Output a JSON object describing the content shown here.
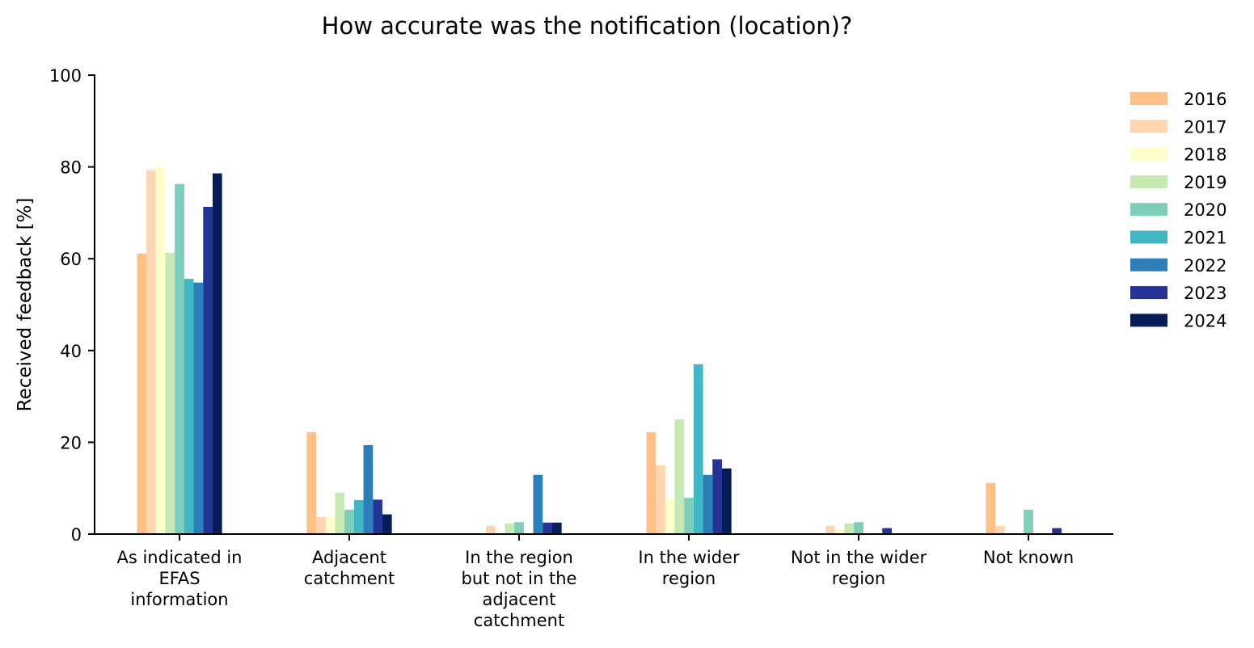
{
  "chart_data": {
    "type": "bar",
    "title": "How accurate was the notification (location)?",
    "xlabel": "",
    "ylabel": "Received feedback [%]",
    "ylim": [
      0,
      100
    ],
    "yticks": [
      "0",
      "20",
      "40",
      "60",
      "80",
      "100"
    ],
    "grid": false,
    "legend_position": "right",
    "categories": [
      "As indicated in EFAS information",
      "Adjacent catchment",
      "In the region but not in the adjacent catchment",
      "In the wider region",
      "Not in the wider region",
      "Not known"
    ],
    "category_label_lines": [
      [
        "As indicated in",
        "EFAS",
        "information"
      ],
      [
        "Adjacent",
        "catchment"
      ],
      [
        "In the region",
        "but not in the",
        "adjacent",
        "catchment"
      ],
      [
        "In the wider",
        "region"
      ],
      [
        "Not in the wider",
        "region"
      ],
      [
        "Not known"
      ]
    ],
    "series": [
      {
        "name": "2016",
        "color": "#fdc086",
        "values": [
          61.1,
          22.2,
          0,
          22.2,
          0,
          11.1
        ]
      },
      {
        "name": "2017",
        "color": "#fdd5b0",
        "values": [
          79.3,
          3.7,
          1.8,
          15.0,
          1.8,
          1.8
        ]
      },
      {
        "name": "2018",
        "color": "#ffffcc",
        "values": [
          80.0,
          3.8,
          0,
          7.7,
          1.0,
          0
        ]
      },
      {
        "name": "2019",
        "color": "#c7e9b4",
        "values": [
          61.3,
          9.0,
          2.3,
          25.0,
          2.3,
          0
        ]
      },
      {
        "name": "2020",
        "color": "#7fcdbb",
        "values": [
          76.3,
          5.3,
          2.6,
          7.9,
          2.6,
          5.3
        ]
      },
      {
        "name": "2021",
        "color": "#41b6c4",
        "values": [
          55.6,
          7.4,
          0,
          37.0,
          0,
          0
        ]
      },
      {
        "name": "2022",
        "color": "#2c7fb8",
        "values": [
          54.8,
          19.4,
          12.9,
          12.9,
          0,
          0
        ]
      },
      {
        "name": "2023",
        "color": "#253494",
        "values": [
          71.3,
          7.5,
          2.5,
          16.3,
          1.3,
          1.3
        ]
      },
      {
        "name": "2024",
        "color": "#081d58",
        "values": [
          78.6,
          4.3,
          2.5,
          14.3,
          0,
          0
        ]
      }
    ]
  }
}
